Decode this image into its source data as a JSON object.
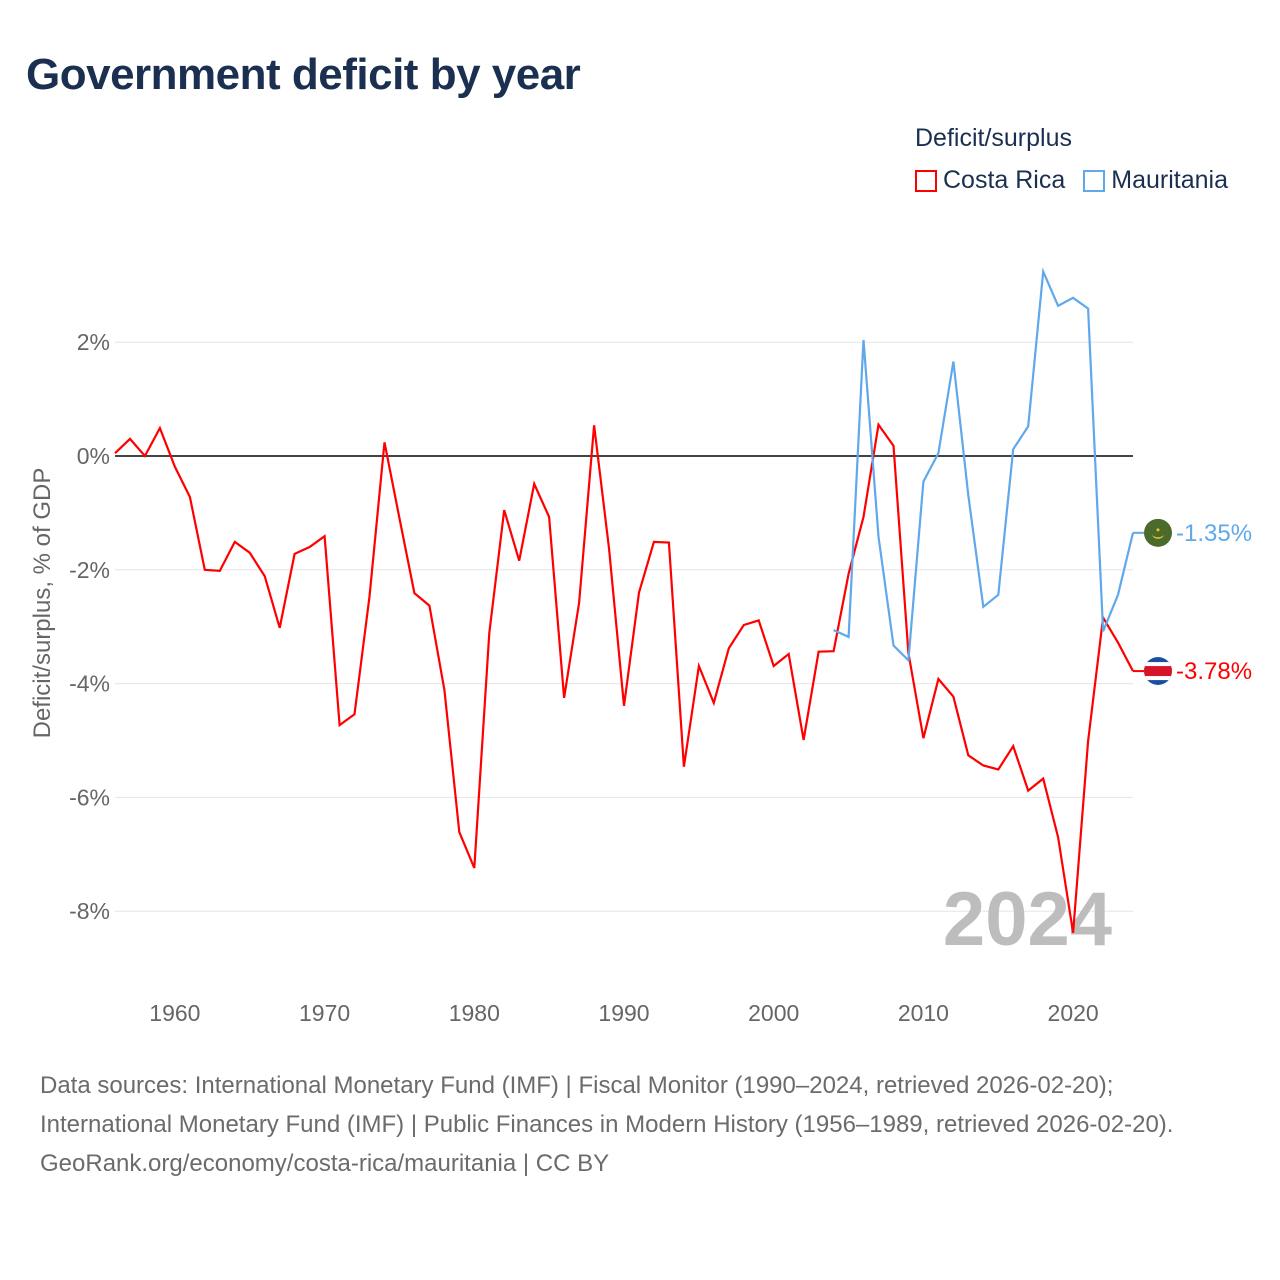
{
  "title": "Government deficit by year",
  "legend": {
    "title": "Deficit/surplus",
    "items": [
      {
        "label": "Costa Rica",
        "color": "#ff0000"
      },
      {
        "label": "Mauritania",
        "color": "#5fa8ec"
      }
    ]
  },
  "watermark_year": "2024",
  "footer": {
    "sources": "Data sources: International Monetary Fund (IMF) | Fiscal Monitor (1990–2024, retrieved 2026-02-20); International Monetary Fund (IMF) | Public Finances in Modern History (1956–1989, retrieved 2026-02-20).",
    "credit": "GeoRank.org/economy/costa-rica/mauritania | CC BY"
  },
  "chart_data": {
    "type": "line",
    "title": "Government deficit by year",
    "xlabel": "",
    "ylabel": "Deficit/surplus, % of GDP",
    "xlim": [
      1956,
      2024
    ],
    "ylim": [
      -9.1,
      3.6
    ],
    "x_ticks": [
      1960,
      1970,
      1980,
      1990,
      2000,
      2010,
      2020
    ],
    "y_ticks": [
      2,
      0,
      -2,
      -4,
      -6,
      -8
    ],
    "y_tick_labels": [
      "2%",
      "0%",
      "-2%",
      "-4%",
      "-6%",
      "-8%"
    ],
    "grid": true,
    "legend_position": "top-right",
    "series": [
      {
        "name": "Costa Rica",
        "color": "#ff0000",
        "end_label": "-3.78%",
        "x_start": 1956,
        "values": [
          0.05,
          0.3,
          0,
          0.49,
          -0.19,
          -0.72,
          -2.0,
          -2.02,
          -1.51,
          -1.7,
          -2.11,
          -3.02,
          -1.72,
          -1.6,
          -1.41,
          -4.73,
          -4.54,
          -2.47,
          0.24,
          -1.09,
          -2.41,
          -2.63,
          -4.11,
          -6.61,
          -7.24,
          -3.11,
          -0.95,
          -1.84,
          -0.49,
          -1.07,
          -4.25,
          -2.58,
          0.54,
          -1.62,
          -4.39,
          -2.4,
          -1.51,
          -1.52,
          -5.46,
          -3.69,
          -4.34,
          -3.38,
          -2.97,
          -2.89,
          -3.69,
          -3.48,
          -4.99,
          -3.44,
          -3.43,
          -2.07,
          -1.07,
          0.55,
          0.18,
          -3.46,
          -4.96,
          -3.92,
          -4.23,
          -5.26,
          -5.44,
          -5.51,
          -5.1,
          -5.88,
          -5.67,
          -6.7,
          -8.38,
          -5.01,
          -2.84,
          -3.28,
          -3.78
        ]
      },
      {
        "name": "Mauritania",
        "color": "#5fa8ec",
        "end_label": "-1.35%",
        "x_start": 2004,
        "values": [
          -3.06,
          -3.18,
          2.04,
          -1.42,
          -3.33,
          -3.59,
          -0.45,
          0.05,
          1.66,
          -0.69,
          -2.65,
          -2.44,
          0.12,
          0.52,
          3.24,
          2.64,
          2.78,
          2.59,
          -3.08,
          -2.44,
          -1.35
        ]
      }
    ]
  }
}
